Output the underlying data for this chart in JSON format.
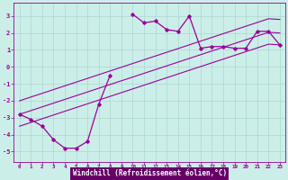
{
  "xlabel": "Windchill (Refroidissement éolien,°C)",
  "background_color": "#cceee8",
  "grid_color": "#aad8d0",
  "line_color": "#990099",
  "xlabel_bg": "#660066",
  "xlabel_fg": "#ffffff",
  "x_data": [
    0,
    1,
    2,
    3,
    4,
    5,
    6,
    7,
    8,
    9,
    10,
    11,
    12,
    13,
    14,
    15,
    16,
    17,
    18,
    19,
    20,
    21,
    22,
    23
  ],
  "y_main": [
    -2.8,
    -3.1,
    -3.5,
    -4.3,
    -4.8,
    -4.8,
    -4.4,
    -2.2,
    -0.5,
    null,
    3.1,
    2.6,
    2.7,
    2.2,
    2.1,
    3.0,
    1.1,
    1.2,
    1.2,
    1.1,
    1.1,
    2.1,
    2.1,
    1.3
  ],
  "y_line1": [
    -3.5,
    -3.28,
    -3.06,
    -2.84,
    -2.62,
    -2.4,
    -2.18,
    -1.96,
    -1.74,
    -1.52,
    -1.3,
    -1.08,
    -0.86,
    -0.64,
    -0.42,
    -0.2,
    0.02,
    0.24,
    0.46,
    0.68,
    0.9,
    1.12,
    1.34,
    1.3
  ],
  "y_line2": [
    -2.8,
    -2.58,
    -2.36,
    -2.14,
    -1.92,
    -1.7,
    -1.48,
    -1.26,
    -1.04,
    -0.82,
    -0.6,
    -0.38,
    -0.16,
    0.06,
    0.28,
    0.5,
    0.72,
    0.94,
    1.16,
    1.38,
    1.6,
    1.82,
    2.04,
    2.0
  ],
  "y_line3": [
    -2.0,
    -1.78,
    -1.56,
    -1.34,
    -1.12,
    -0.9,
    -0.68,
    -0.46,
    -0.24,
    -0.02,
    0.2,
    0.42,
    0.64,
    0.86,
    1.08,
    1.3,
    1.52,
    1.74,
    1.96,
    2.18,
    2.4,
    2.62,
    2.84,
    2.8
  ],
  "xlim": [
    -0.5,
    23.5
  ],
  "ylim": [
    -5.6,
    3.8
  ],
  "yticks": [
    -5,
    -4,
    -3,
    -2,
    -1,
    0,
    1,
    2,
    3
  ],
  "xticks": [
    0,
    1,
    2,
    3,
    4,
    5,
    6,
    7,
    8,
    9,
    10,
    11,
    12,
    13,
    14,
    15,
    16,
    17,
    18,
    19,
    20,
    21,
    22,
    23
  ]
}
